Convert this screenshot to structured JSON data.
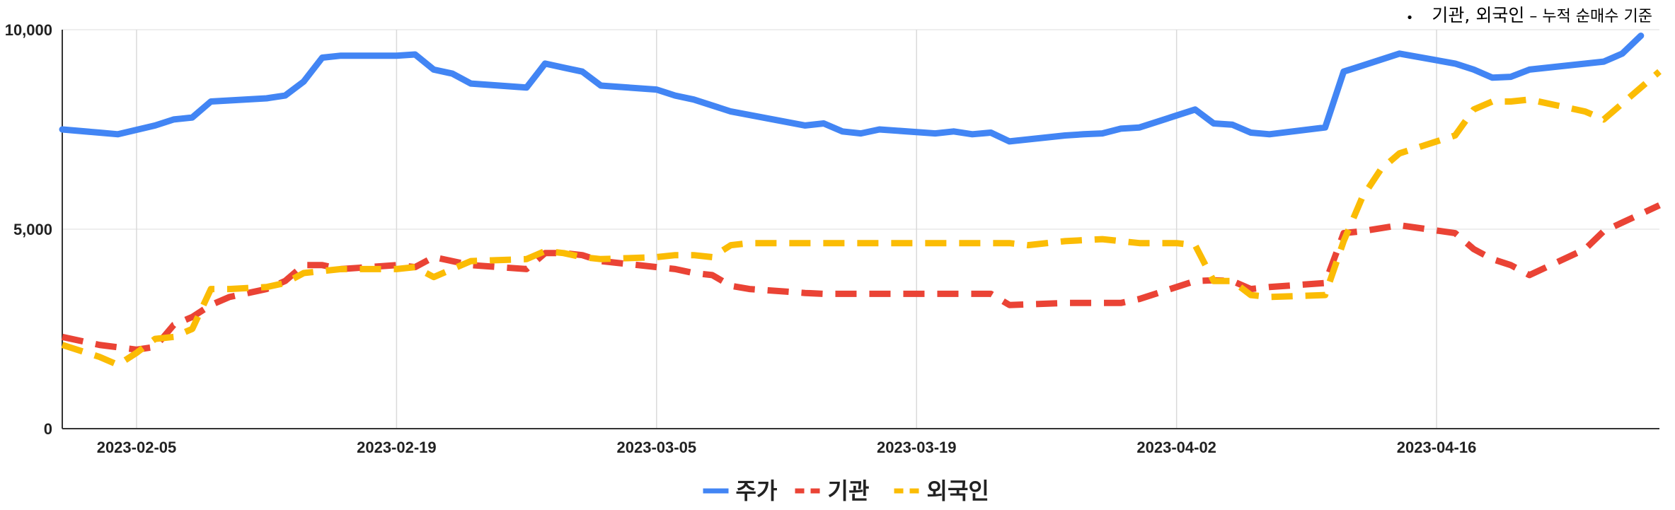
{
  "note": {
    "bullet": "•",
    "main": "기관, 외국인",
    "dash": " – ",
    "sub": "누적 순매수 기준"
  },
  "chart_data": {
    "type": "line",
    "x_start": "2023-02-01",
    "x_end": "2023-04-28",
    "xticks": [
      "2023-02-05",
      "2023-02-19",
      "2023-03-05",
      "2023-03-19",
      "2023-04-02",
      "2023-04-16"
    ],
    "ylim": [
      0,
      10000
    ],
    "yticks": [
      0,
      5000,
      10000
    ],
    "ytick_labels": [
      "0",
      "5,000",
      "10,000"
    ],
    "grid": true,
    "legend_position": "bottom",
    "series": [
      {
        "name": "주가",
        "color": "#4285F4",
        "dash": "solid",
        "points": [
          [
            "2023-02-01",
            7500
          ],
          [
            "2023-02-03",
            7420
          ],
          [
            "2023-02-04",
            7380
          ],
          [
            "2023-02-06",
            7600
          ],
          [
            "2023-02-07",
            7750
          ],
          [
            "2023-02-08",
            7800
          ],
          [
            "2023-02-09",
            8200
          ],
          [
            "2023-02-12",
            8280
          ],
          [
            "2023-02-13",
            8350
          ],
          [
            "2023-02-14",
            8700
          ],
          [
            "2023-02-15",
            9300
          ],
          [
            "2023-02-16",
            9350
          ],
          [
            "2023-02-19",
            9350
          ],
          [
            "2023-02-20",
            9380
          ],
          [
            "2023-02-21",
            9000
          ],
          [
            "2023-02-22",
            8900
          ],
          [
            "2023-02-23",
            8650
          ],
          [
            "2023-02-26",
            8550
          ],
          [
            "2023-02-27",
            9150
          ],
          [
            "2023-02-28",
            9050
          ],
          [
            "2023-03-01",
            8950
          ],
          [
            "2023-03-02",
            8600
          ],
          [
            "2023-03-05",
            8500
          ],
          [
            "2023-03-06",
            8350
          ],
          [
            "2023-03-07",
            8250
          ],
          [
            "2023-03-09",
            7950
          ],
          [
            "2023-03-13",
            7600
          ],
          [
            "2023-03-14",
            7650
          ],
          [
            "2023-03-15",
            7450
          ],
          [
            "2023-03-16",
            7400
          ],
          [
            "2023-03-17",
            7500
          ],
          [
            "2023-03-20",
            7400
          ],
          [
            "2023-03-21",
            7450
          ],
          [
            "2023-03-22",
            7380
          ],
          [
            "2023-03-23",
            7420
          ],
          [
            "2023-03-24",
            7200
          ],
          [
            "2023-03-27",
            7350
          ],
          [
            "2023-03-28",
            7380
          ],
          [
            "2023-03-29",
            7400
          ],
          [
            "2023-03-30",
            7520
          ],
          [
            "2023-03-31",
            7550
          ],
          [
            "2023-04-03",
            8000
          ],
          [
            "2023-04-04",
            7650
          ],
          [
            "2023-04-05",
            7620
          ],
          [
            "2023-04-06",
            7420
          ],
          [
            "2023-04-07",
            7380
          ],
          [
            "2023-04-10",
            7550
          ],
          [
            "2023-04-11",
            8950
          ],
          [
            "2023-04-12",
            9100
          ],
          [
            "2023-04-14",
            9400
          ],
          [
            "2023-04-17",
            9150
          ],
          [
            "2023-04-18",
            9000
          ],
          [
            "2023-04-19",
            8800
          ],
          [
            "2023-04-20",
            8820
          ],
          [
            "2023-04-21",
            9000
          ],
          [
            "2023-04-25",
            9200
          ],
          [
            "2023-04-26",
            9400
          ],
          [
            "2023-04-27",
            9850
          ]
        ]
      },
      {
        "name": "기관",
        "color": "#EA4335",
        "dash": "dashed",
        "points": [
          [
            "2023-02-01",
            2300
          ],
          [
            "2023-02-03",
            2100
          ],
          [
            "2023-02-05",
            1980
          ],
          [
            "2023-02-06",
            2050
          ],
          [
            "2023-02-07",
            2600
          ],
          [
            "2023-02-08",
            2800
          ],
          [
            "2023-02-09",
            3100
          ],
          [
            "2023-02-10",
            3300
          ],
          [
            "2023-02-12",
            3500
          ],
          [
            "2023-02-13",
            3700
          ],
          [
            "2023-02-14",
            4100
          ],
          [
            "2023-02-15",
            4100
          ],
          [
            "2023-02-16",
            4000
          ],
          [
            "2023-02-19",
            4100
          ],
          [
            "2023-02-20",
            4050
          ],
          [
            "2023-02-21",
            4300
          ],
          [
            "2023-02-22",
            4200
          ],
          [
            "2023-02-23",
            4100
          ],
          [
            "2023-02-26",
            4000
          ],
          [
            "2023-02-27",
            4400
          ],
          [
            "2023-02-28",
            4400
          ],
          [
            "2023-03-01",
            4350
          ],
          [
            "2023-03-02",
            4200
          ],
          [
            "2023-03-05",
            4050
          ],
          [
            "2023-03-06",
            4000
          ],
          [
            "2023-03-07",
            3900
          ],
          [
            "2023-03-08",
            3850
          ],
          [
            "2023-03-09",
            3580
          ],
          [
            "2023-03-10",
            3500
          ],
          [
            "2023-03-13",
            3400
          ],
          [
            "2023-03-14",
            3380
          ],
          [
            "2023-03-20",
            3380
          ],
          [
            "2023-03-22",
            3380
          ],
          [
            "2023-03-23",
            3380
          ],
          [
            "2023-03-24",
            3100
          ],
          [
            "2023-03-27",
            3150
          ],
          [
            "2023-03-28",
            3150
          ],
          [
            "2023-03-30",
            3150
          ],
          [
            "2023-03-31",
            3250
          ],
          [
            "2023-04-03",
            3700
          ],
          [
            "2023-04-04",
            3720
          ],
          [
            "2023-04-05",
            3700
          ],
          [
            "2023-04-06",
            3500
          ],
          [
            "2023-04-07",
            3550
          ],
          [
            "2023-04-10",
            3650
          ],
          [
            "2023-04-11",
            4900
          ],
          [
            "2023-04-12",
            4950
          ],
          [
            "2023-04-14",
            5100
          ],
          [
            "2023-04-17",
            4900
          ],
          [
            "2023-04-18",
            4500
          ],
          [
            "2023-04-19",
            4250
          ],
          [
            "2023-04-20",
            4100
          ],
          [
            "2023-04-21",
            3850
          ],
          [
            "2023-04-24",
            4500
          ],
          [
            "2023-04-25",
            4950
          ],
          [
            "2023-04-28",
            5600
          ]
        ]
      },
      {
        "name": "외국인",
        "color": "#FBBC04",
        "dash": "dashed",
        "points": [
          [
            "2023-02-01",
            2100
          ],
          [
            "2023-02-03",
            1800
          ],
          [
            "2023-02-04",
            1600
          ],
          [
            "2023-02-05",
            1900
          ],
          [
            "2023-02-06",
            2250
          ],
          [
            "2023-02-07",
            2300
          ],
          [
            "2023-02-08",
            2500
          ],
          [
            "2023-02-09",
            3500
          ],
          [
            "2023-02-10",
            3500
          ],
          [
            "2023-02-12",
            3550
          ],
          [
            "2023-02-13",
            3650
          ],
          [
            "2023-02-14",
            3900
          ],
          [
            "2023-02-15",
            3950
          ],
          [
            "2023-02-16",
            4000
          ],
          [
            "2023-02-19",
            4000
          ],
          [
            "2023-02-20",
            4050
          ],
          [
            "2023-02-21",
            3800
          ],
          [
            "2023-02-22",
            4000
          ],
          [
            "2023-02-23",
            4200
          ],
          [
            "2023-02-26",
            4250
          ],
          [
            "2023-02-27",
            4450
          ],
          [
            "2023-02-28",
            4400
          ],
          [
            "2023-03-01",
            4300
          ],
          [
            "2023-03-02",
            4250
          ],
          [
            "2023-03-05",
            4300
          ],
          [
            "2023-03-06",
            4350
          ],
          [
            "2023-03-07",
            4350
          ],
          [
            "2023-03-08",
            4300
          ],
          [
            "2023-03-09",
            4600
          ],
          [
            "2023-03-10",
            4650
          ],
          [
            "2023-03-13",
            4650
          ],
          [
            "2023-03-24",
            4650
          ],
          [
            "2023-03-25",
            4600
          ],
          [
            "2023-03-27",
            4700
          ],
          [
            "2023-03-29",
            4750
          ],
          [
            "2023-03-31",
            4650
          ],
          [
            "2023-04-02",
            4650
          ],
          [
            "2023-04-03",
            4600
          ],
          [
            "2023-04-04",
            3700
          ],
          [
            "2023-04-05",
            3700
          ],
          [
            "2023-04-06",
            3350
          ],
          [
            "2023-04-07",
            3300
          ],
          [
            "2023-04-10",
            3350
          ],
          [
            "2023-04-11",
            4700
          ],
          [
            "2023-04-12",
            5800
          ],
          [
            "2023-04-13",
            6500
          ],
          [
            "2023-04-14",
            6900
          ],
          [
            "2023-04-17",
            7350
          ],
          [
            "2023-04-18",
            8000
          ],
          [
            "2023-04-19",
            8200
          ],
          [
            "2023-04-20",
            8200
          ],
          [
            "2023-04-21",
            8250
          ],
          [
            "2023-04-24",
            7950
          ],
          [
            "2023-04-25",
            7750
          ],
          [
            "2023-04-28",
            8950
          ]
        ]
      }
    ]
  }
}
